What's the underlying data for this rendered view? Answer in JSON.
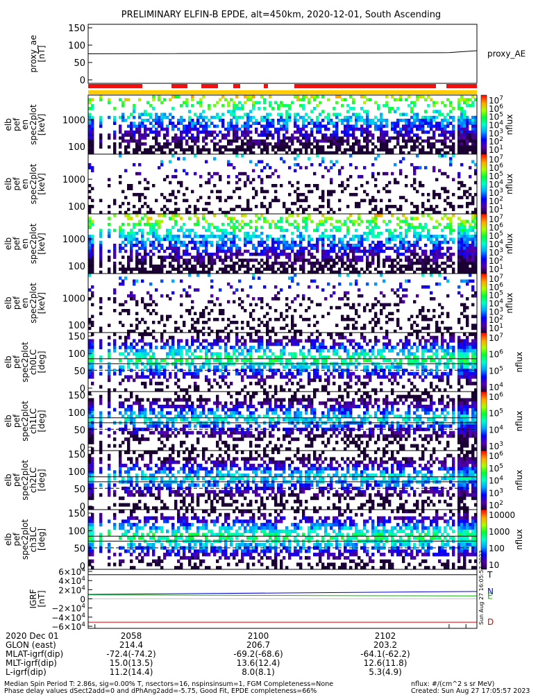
{
  "title": "PRELIMINARY ELFIN-B EPDE, alt=450km, 2020-12-01, South Ascending",
  "colors": {
    "bar_red": "#ee1111",
    "bar_yellow": "#ffcc00",
    "field_blue": "#0000cc",
    "field_green": "#00bb00",
    "field_red": "#dd0000"
  },
  "chart_data": [
    {
      "type": "line",
      "ylabel_lines": [
        "proxy_ae",
        "[nT]"
      ],
      "legend": "proxy_AE",
      "ylim": [
        0,
        150
      ],
      "yticks": [
        "150",
        "100",
        "50",
        "0"
      ],
      "x": [
        "2057.2",
        "2100",
        "2103.3"
      ],
      "y": [
        75,
        78,
        83
      ]
    },
    {
      "type": "heatmap",
      "ylabel_lines": [
        "elb",
        "pef",
        "en",
        "spec2plot",
        "[keV]"
      ],
      "yticks": [
        "1000",
        "100"
      ],
      "colorbar": {
        "label": "nflux",
        "ticks": [
          "10^7",
          "10^6",
          "10^5",
          "10^4",
          "10^3",
          "10^2",
          "10^1"
        ]
      }
    },
    {
      "type": "heatmap",
      "ylabel_lines": [
        "elb",
        "pef",
        "en",
        "spec2plot",
        "[keV]"
      ],
      "yticks": [
        "1000",
        "100"
      ],
      "colorbar": {
        "label": "nflux",
        "ticks": [
          "10^7",
          "10^6",
          "10^5",
          "10^4",
          "10^3",
          "10^2",
          "10^1"
        ]
      }
    },
    {
      "type": "heatmap",
      "ylabel_lines": [
        "elb",
        "pef",
        "en",
        "spec2plot",
        "[keV]"
      ],
      "yticks": [
        "1000",
        "100"
      ],
      "colorbar": {
        "label": "nflux",
        "ticks": [
          "10^7",
          "10^6",
          "10^5",
          "10^4",
          "10^3",
          "10^2",
          "10^1"
        ]
      }
    },
    {
      "type": "heatmap",
      "ylabel_lines": [
        "elb",
        "pef",
        "en",
        "spec2plot",
        "[keV]"
      ],
      "yticks": [
        "1000",
        "100"
      ],
      "colorbar": {
        "label": "nflux",
        "ticks": [
          "10^7",
          "10^6",
          "10^5",
          "10^4",
          "10^3",
          "10^2",
          "10^1"
        ]
      }
    },
    {
      "type": "heatmap",
      "ylabel_lines": [
        "elb",
        "pef",
        "spec2plot",
        "ch0LC",
        "[deg]"
      ],
      "yticks": [
        "150",
        "100",
        "50",
        "0"
      ],
      "colorbar": {
        "label": "nflux",
        "ticks": [
          "10^7",
          "10^6",
          "10^5",
          "10^4"
        ]
      }
    },
    {
      "type": "heatmap",
      "ylabel_lines": [
        "elb",
        "pef",
        "spec2plot",
        "ch1LC",
        "[deg]"
      ],
      "yticks": [
        "150",
        "100",
        "50",
        "0"
      ],
      "colorbar": {
        "label": "nflux",
        "ticks": [
          "10^6",
          "10^5",
          "10^4",
          "10^3"
        ]
      }
    },
    {
      "type": "heatmap",
      "ylabel_lines": [
        "elb",
        "pef",
        "spec2plot",
        "ch2LC",
        "[deg]"
      ],
      "yticks": [
        "150",
        "100",
        "50",
        "0"
      ],
      "colorbar": {
        "label": "nflux",
        "ticks": [
          "10^6",
          "10^5",
          "10^4",
          "10^3",
          "10^2"
        ]
      }
    },
    {
      "type": "heatmap",
      "ylabel_lines": [
        "elb",
        "pef",
        "spec2plot",
        "ch3LC",
        "[deg]"
      ],
      "yticks": [
        "150",
        "100",
        "50",
        "0"
      ],
      "colorbar": {
        "label": "nflux",
        "ticks": [
          "10000",
          "1000",
          "100",
          "10"
        ]
      }
    },
    {
      "type": "line",
      "ylabel_lines": [
        "IGRF",
        "[nT]"
      ],
      "yticks": [
        "6×10^4",
        "4×10^4",
        "2×10^4",
        "0",
        "−2×10^4",
        "−4×10^4",
        "−6×10^4"
      ],
      "ylim": [
        -60000,
        60000
      ],
      "series": [
        {
          "name": "T",
          "x": [
            "2057.2",
            "2103.3"
          ],
          "y": [
            49000,
            49000
          ]
        },
        {
          "name": "N",
          "x": [
            "2057.2",
            "2103.3"
          ],
          "y": [
            9000,
            15000
          ]
        },
        {
          "name": "E",
          "x": [
            "2057.2",
            "2103.3"
          ],
          "y": [
            8000,
            6000
          ]
        },
        {
          "name": "D",
          "x": [
            "2057.2",
            "2103.3"
          ],
          "y": [
            -47500,
            -47500
          ]
        }
      ]
    }
  ],
  "side_stamp": "Sun Aug 27 16:05:57 2023",
  "xaxis": {
    "row_labels": [
      "2020 Dec 01",
      "GLON (east)",
      "MLAT-igrf(dip)",
      "MLT-igrf(dip)",
      "L-igrf(dip)"
    ],
    "columns": [
      [
        "2058",
        "214.4",
        "-72.4(-74.2)",
        "15.0(13.5)",
        "11.2(14.4)"
      ],
      [
        "2100",
        "206.7",
        "-69.2(-68.6)",
        "13.6(12.4)",
        "8.0(8.1)"
      ],
      [
        "2102",
        "203.2",
        "-64.1(-62.2)",
        "12.6(11.8)",
        "5.3(4.9)"
      ]
    ]
  },
  "footer": {
    "left_1": "Median Spin Period T: 2.86s, sig=0.00% T, nsectors=16, nspinsinsum=1, FGM Completeness=None",
    "left_2": "Phase delay values dSect2add=0 and dPhAng2add=-5.75, Good Fit, EPDE completeness=66%",
    "right_1": "nflux: #/(cm^2 s sr MeV)",
    "right_2": "Created: Sun Aug 27 17:05:57 2023"
  }
}
